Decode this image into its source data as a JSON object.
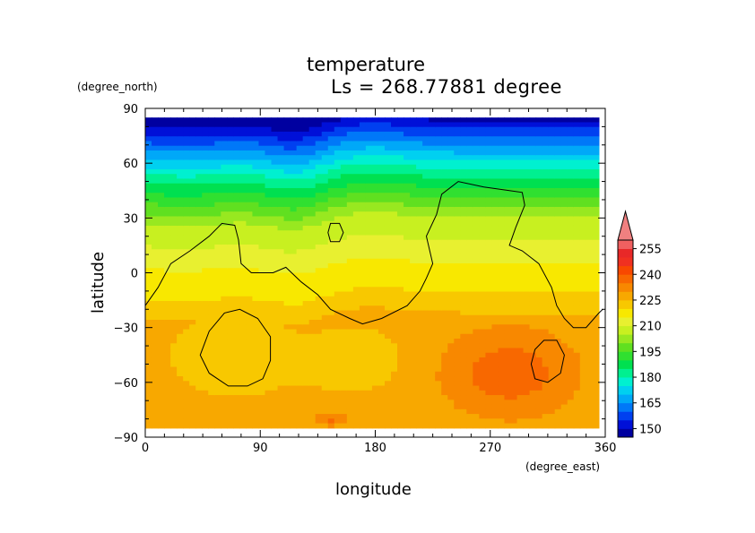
{
  "chart_data": {
    "type": "heatmap",
    "title": "temperature",
    "subtitle": "Ls = 268.77881 degree",
    "xlabel": "longitude",
    "ylabel": "latitude",
    "x_units": "(degree_east)",
    "y_units": "(degree_north)",
    "xlim": [
      0,
      360
    ],
    "ylim": [
      -90,
      90
    ],
    "x_ticks": [
      0,
      90,
      180,
      270,
      360
    ],
    "y_ticks": [
      90,
      60,
      30,
      0,
      -30,
      -60,
      -90
    ],
    "colorbar": {
      "labels": [
        255,
        240,
        225,
        210,
        195,
        180,
        165,
        150
      ],
      "levels": [
        145,
        150,
        155,
        160,
        165,
        170,
        175,
        180,
        185,
        190,
        195,
        200,
        205,
        210,
        215,
        220,
        225,
        230,
        235,
        240,
        245,
        250,
        255,
        260
      ],
      "colors": [
        "#0000a0",
        "#0010d8",
        "#0040f0",
        "#0078f8",
        "#00a8f8",
        "#00d0f0",
        "#00f0d0",
        "#00f090",
        "#00e050",
        "#30e030",
        "#60e020",
        "#98e820",
        "#c8f020",
        "#e8f030",
        "#f8e800",
        "#f8c800",
        "#f8a800",
        "#f88800",
        "#f86800",
        "#f84800",
        "#f03020",
        "#e82828",
        "#f06060"
      ],
      "extend": "max"
    },
    "grid": false,
    "legend": "right"
  }
}
